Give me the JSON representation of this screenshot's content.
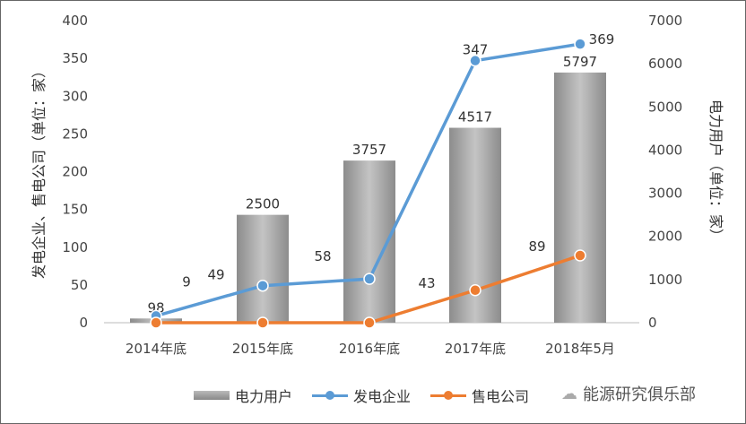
{
  "chart_data": {
    "type": "bar+line",
    "categories": [
      "2014年底",
      "2015年底",
      "2016年底",
      "2017年底",
      "2018年5月"
    ],
    "y_left": {
      "label": "发电企业、售电公司（单位：家）",
      "range": [
        0,
        400
      ],
      "ticks": [
        0,
        50,
        100,
        150,
        200,
        250,
        300,
        350,
        400
      ]
    },
    "y_right": {
      "label": "电力用户（单位：家）",
      "range": [
        0,
        7000
      ],
      "ticks": [
        0,
        1000,
        2000,
        3000,
        4000,
        5000,
        6000,
        7000
      ]
    },
    "series": [
      {
        "name": "电力用户",
        "type": "bar",
        "axis": "right",
        "values": [
          98,
          2500,
          3757,
          4517,
          5797
        ],
        "color": "#9e9e9e"
      },
      {
        "name": "发电企业",
        "type": "line",
        "axis": "left",
        "values": [
          9,
          49,
          58,
          347,
          369
        ],
        "color": "#5b9bd5"
      },
      {
        "name": "售电公司",
        "type": "line",
        "axis": "left",
        "values": [
          0,
          0,
          0,
          43,
          89
        ],
        "color": "#ed7d31"
      }
    ],
    "legend": "bottom",
    "grid": false
  },
  "watermark": "能源研究俱乐部"
}
